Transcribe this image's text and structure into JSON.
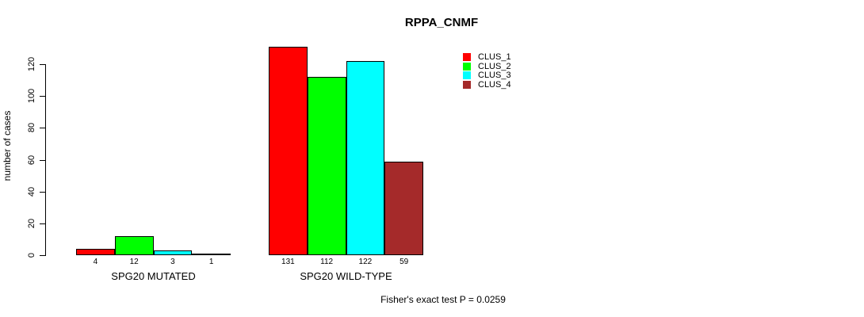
{
  "chart_data": {
    "type": "bar",
    "title": "RPPA_CNMF",
    "categories": [
      "SPG20 MUTATED",
      "SPG20 WILD-TYPE"
    ],
    "series": [
      {
        "name": "CLUS_1",
        "color": "#FF0000",
        "values": [
          4,
          131
        ]
      },
      {
        "name": "CLUS_2",
        "color": "#00FF00",
        "values": [
          12,
          112
        ]
      },
      {
        "name": "CLUS_3",
        "color": "#00FFFF",
        "values": [
          3,
          122
        ]
      },
      {
        "name": "CLUS_4",
        "color": "#A52A2A",
        "values": [
          1,
          59
        ]
      }
    ],
    "ylabel": "number of cases",
    "xlabel": "",
    "ylim": [
      0,
      131
    ],
    "yticks": [
      0,
      20,
      40,
      60,
      80,
      100,
      120
    ],
    "bar_value_labels": true,
    "legend_position": "top-right",
    "grid": false,
    "annotation": "Fisher's exact test P = 0.0259",
    "axis_color": "#000000",
    "text_color": "#000000",
    "background": "#FFFFFF"
  }
}
